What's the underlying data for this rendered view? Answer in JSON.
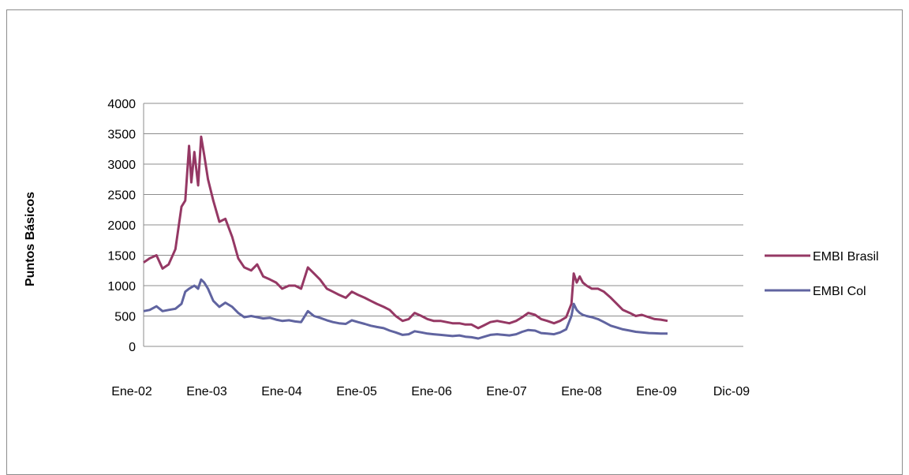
{
  "chart_data": {
    "type": "line",
    "title": "",
    "xlabel": "",
    "ylabel": "Puntos Básicos",
    "ylim": [
      0,
      4000
    ],
    "yticks": [
      0,
      500,
      1000,
      1500,
      2000,
      2500,
      3000,
      3500,
      4000
    ],
    "xticks": [
      "Ene-02",
      "Ene-03",
      "Ene-04",
      "Ene-05",
      "Ene-06",
      "Ene-07",
      "Ene-08",
      "Ene-09",
      "Dic-09"
    ],
    "x_domain": [
      2002.0,
      2009.92
    ],
    "grid": "horizontal",
    "legend": "right",
    "series": [
      {
        "name": "EMBI Brasil",
        "color": "#953864",
        "points": [
          [
            2002.0,
            1380
          ],
          [
            2002.08,
            1450
          ],
          [
            2002.17,
            1500
          ],
          [
            2002.25,
            1280
          ],
          [
            2002.33,
            1350
          ],
          [
            2002.42,
            1600
          ],
          [
            2002.5,
            2300
          ],
          [
            2002.55,
            2400
          ],
          [
            2002.6,
            3300
          ],
          [
            2002.63,
            2700
          ],
          [
            2002.67,
            3200
          ],
          [
            2002.72,
            2650
          ],
          [
            2002.76,
            3450
          ],
          [
            2002.8,
            3150
          ],
          [
            2002.85,
            2750
          ],
          [
            2002.92,
            2400
          ],
          [
            2003.0,
            2050
          ],
          [
            2003.08,
            2100
          ],
          [
            2003.17,
            1800
          ],
          [
            2003.25,
            1450
          ],
          [
            2003.33,
            1300
          ],
          [
            2003.42,
            1250
          ],
          [
            2003.5,
            1350
          ],
          [
            2003.58,
            1150
          ],
          [
            2003.67,
            1100
          ],
          [
            2003.75,
            1050
          ],
          [
            2003.83,
            950
          ],
          [
            2003.92,
            1000
          ],
          [
            2004.0,
            1000
          ],
          [
            2004.08,
            950
          ],
          [
            2004.17,
            1300
          ],
          [
            2004.25,
            1200
          ],
          [
            2004.33,
            1100
          ],
          [
            2004.42,
            950
          ],
          [
            2004.5,
            900
          ],
          [
            2004.58,
            850
          ],
          [
            2004.67,
            800
          ],
          [
            2004.75,
            900
          ],
          [
            2004.83,
            850
          ],
          [
            2004.92,
            800
          ],
          [
            2005.0,
            750
          ],
          [
            2005.08,
            700
          ],
          [
            2005.17,
            650
          ],
          [
            2005.25,
            600
          ],
          [
            2005.33,
            500
          ],
          [
            2005.42,
            420
          ],
          [
            2005.5,
            450
          ],
          [
            2005.58,
            550
          ],
          [
            2005.67,
            500
          ],
          [
            2005.75,
            450
          ],
          [
            2005.83,
            420
          ],
          [
            2005.92,
            420
          ],
          [
            2006.0,
            400
          ],
          [
            2006.08,
            380
          ],
          [
            2006.17,
            380
          ],
          [
            2006.25,
            360
          ],
          [
            2006.33,
            360
          ],
          [
            2006.42,
            300
          ],
          [
            2006.5,
            350
          ],
          [
            2006.58,
            400
          ],
          [
            2006.67,
            420
          ],
          [
            2006.75,
            400
          ],
          [
            2006.83,
            380
          ],
          [
            2006.92,
            420
          ],
          [
            2007.0,
            480
          ],
          [
            2007.08,
            550
          ],
          [
            2007.17,
            520
          ],
          [
            2007.25,
            450
          ],
          [
            2007.33,
            420
          ],
          [
            2007.42,
            380
          ],
          [
            2007.5,
            420
          ],
          [
            2007.58,
            480
          ],
          [
            2007.65,
            700
          ],
          [
            2007.68,
            1200
          ],
          [
            2007.72,
            1050
          ],
          [
            2007.76,
            1150
          ],
          [
            2007.8,
            1050
          ],
          [
            2007.85,
            1000
          ],
          [
            2007.92,
            950
          ],
          [
            2008.0,
            950
          ],
          [
            2008.08,
            900
          ],
          [
            2008.17,
            800
          ],
          [
            2008.25,
            700
          ],
          [
            2008.33,
            600
          ],
          [
            2008.42,
            550
          ],
          [
            2008.5,
            500
          ],
          [
            2008.58,
            520
          ],
          [
            2008.67,
            480
          ],
          [
            2008.75,
            450
          ],
          [
            2008.83,
            440
          ],
          [
            2008.92,
            420
          ]
        ]
      },
      {
        "name": "EMBI Col",
        "color": "#6064a0",
        "points": [
          [
            2002.0,
            580
          ],
          [
            2002.08,
            600
          ],
          [
            2002.17,
            660
          ],
          [
            2002.25,
            580
          ],
          [
            2002.33,
            600
          ],
          [
            2002.42,
            620
          ],
          [
            2002.5,
            700
          ],
          [
            2002.55,
            900
          ],
          [
            2002.6,
            950
          ],
          [
            2002.67,
            1000
          ],
          [
            2002.72,
            950
          ],
          [
            2002.76,
            1100
          ],
          [
            2002.8,
            1050
          ],
          [
            2002.85,
            950
          ],
          [
            2002.92,
            750
          ],
          [
            2003.0,
            650
          ],
          [
            2003.08,
            720
          ],
          [
            2003.17,
            650
          ],
          [
            2003.25,
            550
          ],
          [
            2003.33,
            480
          ],
          [
            2003.42,
            500
          ],
          [
            2003.5,
            480
          ],
          [
            2003.58,
            460
          ],
          [
            2003.67,
            470
          ],
          [
            2003.75,
            440
          ],
          [
            2003.83,
            420
          ],
          [
            2003.92,
            430
          ],
          [
            2004.0,
            410
          ],
          [
            2004.08,
            400
          ],
          [
            2004.17,
            580
          ],
          [
            2004.25,
            500
          ],
          [
            2004.33,
            470
          ],
          [
            2004.42,
            430
          ],
          [
            2004.5,
            400
          ],
          [
            2004.58,
            380
          ],
          [
            2004.67,
            370
          ],
          [
            2004.75,
            430
          ],
          [
            2004.83,
            400
          ],
          [
            2004.92,
            370
          ],
          [
            2005.0,
            340
          ],
          [
            2005.08,
            320
          ],
          [
            2005.17,
            300
          ],
          [
            2005.25,
            260
          ],
          [
            2005.33,
            230
          ],
          [
            2005.42,
            190
          ],
          [
            2005.5,
            200
          ],
          [
            2005.58,
            250
          ],
          [
            2005.67,
            230
          ],
          [
            2005.75,
            210
          ],
          [
            2005.83,
            200
          ],
          [
            2005.92,
            190
          ],
          [
            2006.0,
            180
          ],
          [
            2006.08,
            170
          ],
          [
            2006.17,
            180
          ],
          [
            2006.25,
            160
          ],
          [
            2006.33,
            150
          ],
          [
            2006.42,
            130
          ],
          [
            2006.5,
            160
          ],
          [
            2006.58,
            190
          ],
          [
            2006.67,
            200
          ],
          [
            2006.75,
            190
          ],
          [
            2006.83,
            180
          ],
          [
            2006.92,
            200
          ],
          [
            2007.0,
            240
          ],
          [
            2007.08,
            270
          ],
          [
            2007.17,
            260
          ],
          [
            2007.25,
            220
          ],
          [
            2007.33,
            210
          ],
          [
            2007.42,
            200
          ],
          [
            2007.5,
            230
          ],
          [
            2007.58,
            280
          ],
          [
            2007.65,
            500
          ],
          [
            2007.68,
            700
          ],
          [
            2007.72,
            600
          ],
          [
            2007.76,
            550
          ],
          [
            2007.8,
            520
          ],
          [
            2007.85,
            500
          ],
          [
            2007.92,
            480
          ],
          [
            2008.0,
            450
          ],
          [
            2008.08,
            400
          ],
          [
            2008.17,
            340
          ],
          [
            2008.25,
            310
          ],
          [
            2008.33,
            280
          ],
          [
            2008.42,
            260
          ],
          [
            2008.5,
            240
          ],
          [
            2008.58,
            230
          ],
          [
            2008.67,
            220
          ],
          [
            2008.75,
            215
          ],
          [
            2008.83,
            210
          ],
          [
            2008.92,
            210
          ]
        ]
      }
    ]
  }
}
